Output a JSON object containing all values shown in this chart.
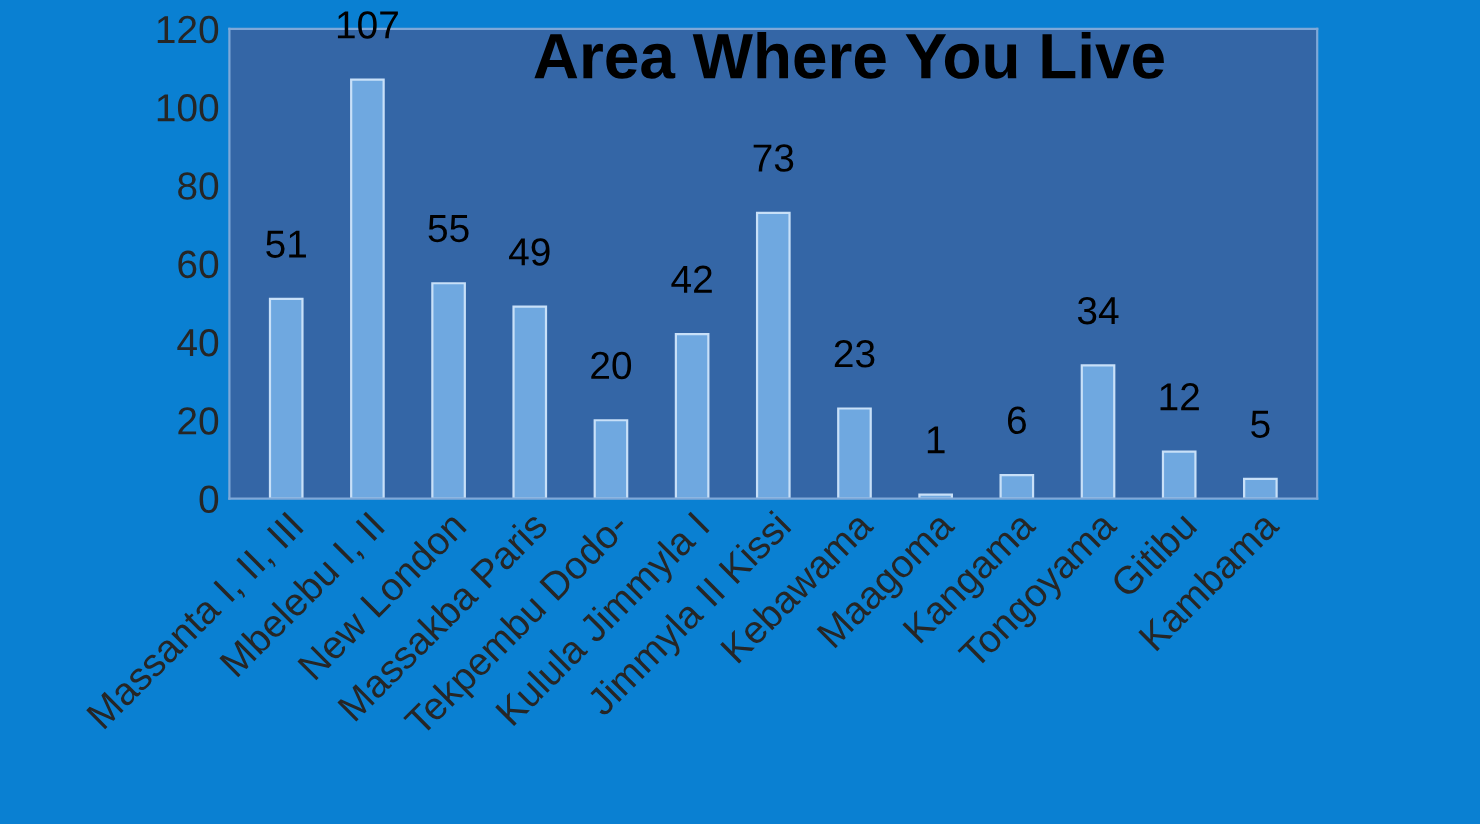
{
  "chart_data": {
    "type": "bar",
    "title": "Area Where You Live",
    "categories": [
      "Massanta I, II, III",
      "Mbelebu I, II",
      "New London",
      "Massakba Paris",
      "Tekpembu Dodo-",
      "Kulula Jimmyla I",
      "Jimmyla II Kissi",
      "Kebawama",
      "Maagoma",
      "Kangama",
      "Tongoyama",
      "Gitibu",
      "Kambama"
    ],
    "values": [
      51,
      107,
      55,
      49,
      20,
      42,
      73,
      23,
      1,
      6,
      34,
      12,
      5
    ],
    "color": "#6fa8e0",
    "ylim": [
      0,
      120
    ],
    "yticks": [
      0,
      20,
      40,
      60,
      80,
      100,
      120
    ],
    "grid": false,
    "data_labels": true
  }
}
